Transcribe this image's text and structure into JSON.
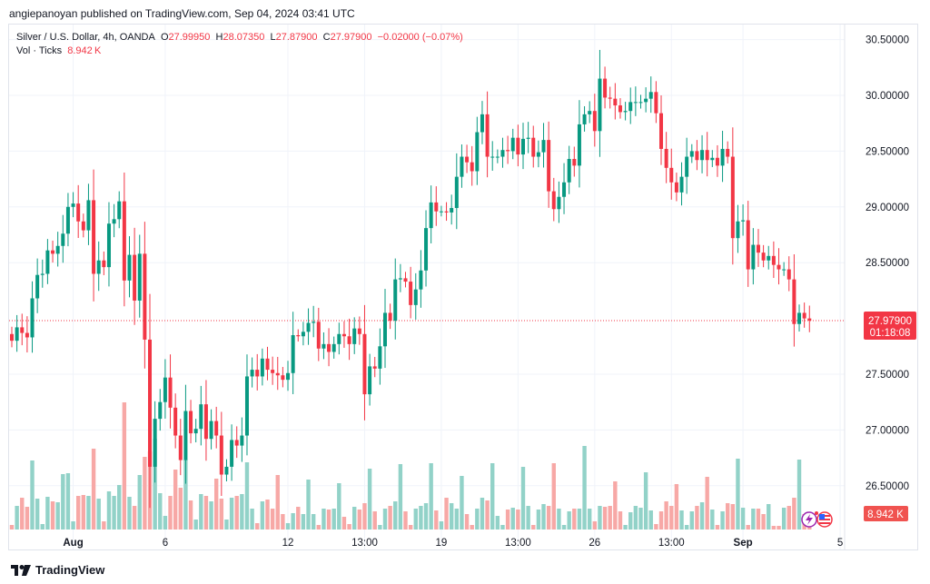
{
  "header": {
    "published": "angiepanoyan published on TradingView.com, Sep 04, 2024 03:41 UTC"
  },
  "legend": {
    "symbol": "Silver / U.S. Dollar, 4h, OANDA",
    "o_label": "O",
    "o": "27.99950",
    "h_label": "H",
    "h": "28.07350",
    "l_label": "L",
    "l": "27.87900",
    "c_label": "C",
    "c": "27.97900",
    "change": "−0.02000 (−0.07%)",
    "vol_label": "Vol · Ticks",
    "vol": "8.942 K"
  },
  "price_tag": {
    "price": "27.97900",
    "countdown": "01:18:08"
  },
  "volume_tag": "8.942 K",
  "footer": {
    "brand": "TradingView"
  },
  "colors": {
    "up": "#089981",
    "down": "#f23645",
    "up_vol": "#92d2c8",
    "down_vol": "#f7a8a6"
  },
  "chart_data": {
    "type": "candlestick",
    "title": "Silver / U.S. Dollar, 4h, OANDA",
    "ylim": [
      26.1,
      30.6
    ],
    "y_ticks": [
      "30.50000",
      "30.00000",
      "29.50000",
      "29.00000",
      "28.50000",
      "27.50000",
      "27.00000",
      "26.50000"
    ],
    "y_tick_values": [
      30.5,
      30.0,
      29.5,
      29.0,
      28.5,
      27.5,
      27.0,
      26.5
    ],
    "x_ticks": [
      "Aug",
      "6",
      "12",
      "13:00",
      "19",
      "13:00",
      "26",
      "13:00",
      "Sep",
      "5"
    ],
    "x_tick_index": [
      12,
      30,
      54,
      69,
      84,
      99,
      114,
      129,
      143,
      162
    ],
    "first_open": 27.86,
    "close": [
      27.8,
      27.92,
      27.87,
      27.83,
      28.18,
      28.39,
      28.4,
      28.61,
      28.58,
      28.65,
      28.76,
      29.0,
      29.03,
      28.87,
      28.79,
      29.06,
      28.4,
      28.52,
      28.46,
      28.85,
      28.89,
      29.05,
      28.34,
      28.57,
      28.16,
      28.58,
      27.81,
      26.67,
      27.1,
      27.25,
      27.47,
      27.2,
      26.95,
      26.73,
      27.17,
      26.97,
      27.01,
      27.23,
      26.92,
      27.08,
      26.95,
      26.6,
      26.67,
      26.91,
      26.86,
      26.95,
      27.48,
      27.54,
      27.48,
      27.64,
      27.54,
      27.51,
      27.49,
      27.45,
      27.51,
      27.85,
      27.84,
      27.88,
      27.96,
      27.97,
      27.73,
      27.77,
      27.7,
      27.77,
      27.86,
      27.84,
      27.77,
      27.91,
      27.86,
      27.32,
      27.57,
      27.55,
      27.75,
      28.05,
      27.98,
      28.35,
      28.36,
      28.33,
      28.12,
      28.26,
      28.43,
      28.81,
      29.04,
      28.96,
      28.96,
      28.95,
      28.99,
      29.27,
      29.45,
      29.4,
      29.32,
      29.67,
      29.83,
      29.45,
      29.45,
      29.45,
      29.51,
      29.5,
      29.62,
      29.47,
      29.61,
      29.62,
      29.45,
      29.49,
      29.6,
      29.14,
      28.98,
      29.09,
      29.22,
      29.43,
      29.37,
      29.74,
      29.83,
      29.86,
      29.68,
      30.15,
      29.98,
      29.97,
      29.91,
      29.85,
      29.86,
      29.94,
      29.94,
      29.94,
      29.97,
      30.03,
      29.84,
      29.52,
      29.35,
      29.22,
      29.13,
      29.27,
      29.45,
      29.5,
      29.42,
      29.51,
      29.42,
      29.44,
      29.37,
      29.52,
      29.45,
      28.72,
      28.87,
      28.88,
      28.44,
      28.66,
      28.59,
      28.52,
      28.56,
      28.48,
      28.44,
      28.44,
      28.35,
      27.95,
      28.05,
      28.0,
      27.98
    ],
    "volume_k": [
      5,
      26,
      35,
      25,
      76,
      34,
      6,
      36,
      31,
      30,
      61,
      62,
      9,
      37,
      38,
      37,
      89,
      34,
      9,
      42,
      37,
      49,
      140,
      36,
      26,
      60,
      80,
      86,
      100,
      40,
      15,
      37,
      66,
      46,
      77,
      32,
      11,
      39,
      37,
      31,
      56,
      34,
      11,
      35,
      37,
      39,
      74,
      23,
      7,
      31,
      33,
      23,
      60,
      17,
      7,
      18,
      25,
      17,
      55,
      17,
      5,
      23,
      22,
      23,
      51,
      14,
      6,
      25,
      22,
      29,
      67,
      20,
      5,
      23,
      26,
      31,
      72,
      20,
      5,
      23,
      26,
      29,
      73,
      21,
      9,
      35,
      29,
      23,
      59,
      17,
      5,
      23,
      35,
      32,
      73,
      15,
      5,
      22,
      24,
      22,
      69,
      26,
      5,
      22,
      28,
      26,
      73,
      23,
      5,
      20,
      23,
      23,
      92,
      23,
      9,
      26,
      25,
      26,
      53,
      20,
      5,
      19,
      26,
      24,
      63,
      21,
      6,
      20,
      31,
      26,
      50,
      21,
      5,
      20,
      26,
      30,
      58,
      22,
      5,
      20,
      29,
      28,
      78,
      24,
      5,
      23,
      23,
      17,
      28,
      4,
      4,
      24,
      26,
      35,
      77,
      17,
      9
    ]
  }
}
